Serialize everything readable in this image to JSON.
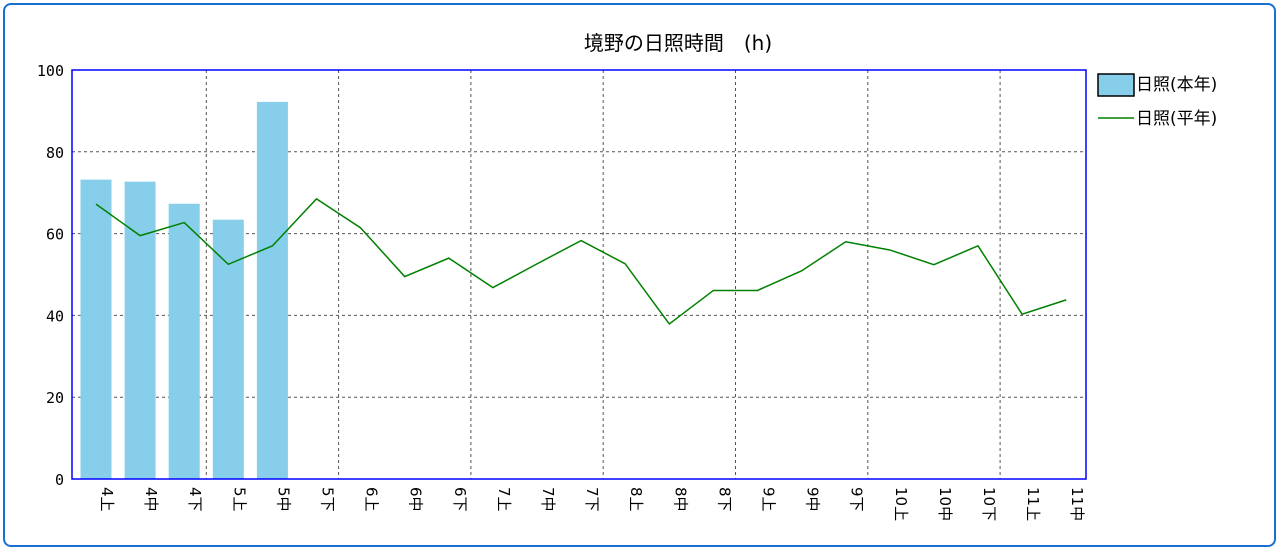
{
  "chart_data": {
    "type": "bar",
    "title": "境野の日照時間　(h)",
    "categories": [
      "4上",
      "4中",
      "4下",
      "5上",
      "5中",
      "5下",
      "6上",
      "6中",
      "6下",
      "7上",
      "7中",
      "7下",
      "8上",
      "8中",
      "8下",
      "9上",
      "9中",
      "9下",
      "10上",
      "10中",
      "10下",
      "11上",
      "11中"
    ],
    "series": [
      {
        "name": "日照(本年)",
        "kind": "bar",
        "color": "#87ceeb",
        "values": [
          73.2,
          72.7,
          67.3,
          63.4,
          92.2,
          null,
          null,
          null,
          null,
          null,
          null,
          null,
          null,
          null,
          null,
          null,
          null,
          null,
          null,
          null,
          null,
          null,
          null
        ]
      },
      {
        "name": "日照(平年)",
        "kind": "line",
        "color": "#008000",
        "values": [
          67.2,
          59.5,
          62.7,
          52.5,
          57.0,
          68.5,
          61.4,
          49.5,
          54.0,
          46.8,
          52.6,
          58.3,
          52.6,
          37.9,
          46.1,
          46.1,
          50.9,
          58.0,
          56.0,
          52.4,
          57.0,
          40.3,
          43.8
        ]
      }
    ],
    "ylim": [
      0,
      100
    ],
    "yticks": [
      0,
      20,
      40,
      60,
      80,
      100
    ],
    "grid": true,
    "legend_position": "right"
  }
}
